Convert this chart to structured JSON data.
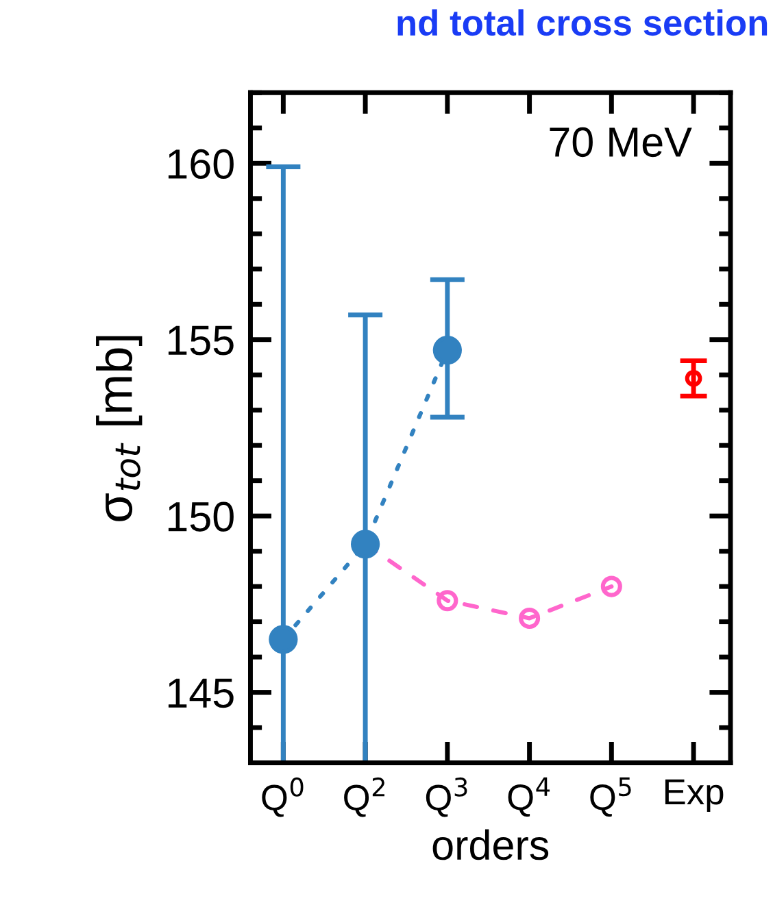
{
  "chart_data": {
    "type": "line",
    "title": "nd total cross section",
    "xlabel": "orders",
    "ylabel": "σ$_{tot}$ [mb]",
    "annotations": [
      "70 MeV"
    ],
    "categories": [
      "Q$^{0}$",
      "Q$^{2}$",
      "Q$^{3}$",
      "Q$^{4}$",
      "Q$^{5}$",
      "Exp"
    ],
    "series": [
      {
        "color": "#3282c0",
        "values": [
          146.5,
          149.2,
          154.7,
          null,
          null,
          null
        ],
        "errors": [
          [
            143,
            159.9
          ],
          [
            143,
            155.7
          ],
          [
            152.8,
            156.7
          ],
          null,
          null,
          null
        ],
        "marker": "circle",
        "line_style": "dotted"
      },
      {
        "color": "#ff66cc",
        "values": [
          null,
          149.2,
          147.6,
          147.1,
          148.0,
          null
        ],
        "marker": "circle",
        "line_style": "dashed"
      },
      {
        "type": "scatter",
        "color": "#ff0000",
        "values": [
          null,
          null,
          null,
          null,
          null,
          153.9
        ],
        "errors": [
          null,
          null,
          null,
          null,
          null,
          0.5
        ],
        "marker": "circle"
      }
    ],
    "ylim": [
      143,
      162
    ],
    "yticks": [
      145,
      150,
      155,
      160
    ],
    "grid": false,
    "legend": false
  }
}
